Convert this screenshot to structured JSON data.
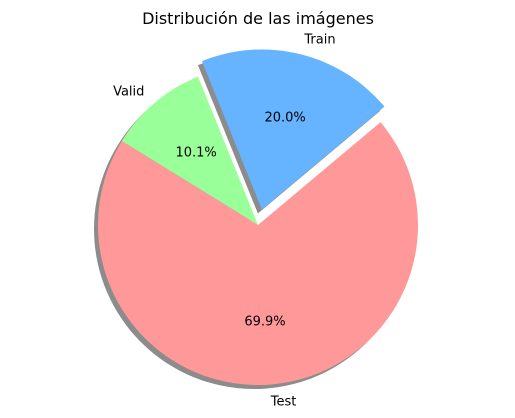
{
  "chart_data": {
    "type": "pie",
    "title": "Distribución de las imágenes",
    "labels": [
      "Train",
      "Valid",
      "Test"
    ],
    "values": [
      20.0,
      10.1,
      69.9
    ],
    "pct_labels": [
      "20.0%",
      "10.1%",
      "69.9%"
    ],
    "colors": [
      "#66b3ff",
      "#99ff99",
      "#ff9999"
    ],
    "explode": [
      0.1,
      0,
      0
    ],
    "start_angle_deg": 40,
    "shadow": true,
    "legend": "none"
  }
}
